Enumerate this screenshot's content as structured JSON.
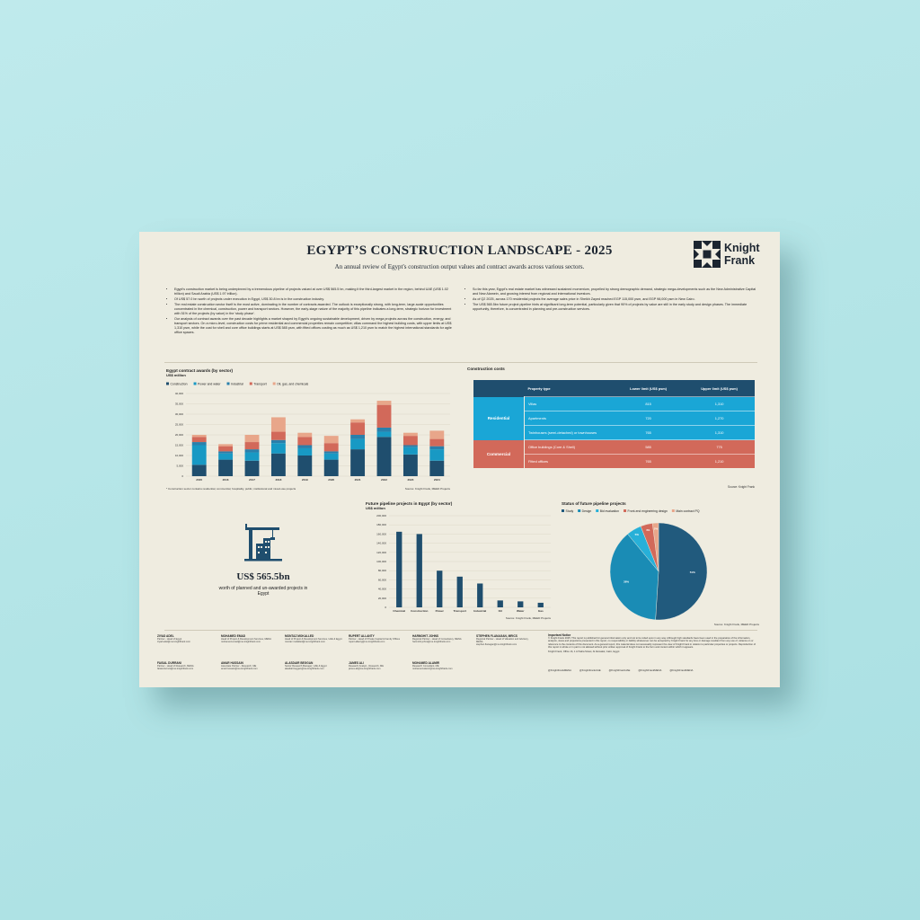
{
  "header": {
    "title": "EGYPT’S CONSTRUCTION LANDSCAPE - 2025",
    "subtitle": "An annual review of Egypt's construction output values and contract awards across various sectors.",
    "logo": [
      "Knight",
      "Frank"
    ]
  },
  "bullets_left": [
    "Egypt's construction market is being underpinned by a tremendous pipeline of projects valued at over US$ 565.5 bn, making it the third-largest market in the region, behind UAE (US$ 1.02 trillion) and Saudi Arabia (US$ 1.97 trillion).",
    "Of US$ 57.0 bn worth of projects under execution in Egypt, US$ 30.8 bn is in the construction industry.",
    "The real estate construction sector itself is the most active, dominating in the number of contracts awarded. The outlook is exceptionally strong, with long-term, large-scale opportunities concentrated in the chemical, construction, power and transport sectors. However, the early-stage nature of the majority of this pipeline indicates a long-term, strategic horizon for investment with 51% of the projects (by value) in the 'study phase'.",
    "Our analysis of contract awards over the past decade highlights a market shaped by Egypt's ongoing sustainable development, driven by mega projects across the construction, energy, and transport sectors. On a micro-level, construction costs for prime residential and commercial properties remain competitive; villas command the highest building costs, with upper limits at US$ 1,310 psm, while the cost for shell and core office buildings starts at US$ 585 psm, with fitted offices costing as much as US$ 1,210 psm to match the highest international standards for agile office spaces."
  ],
  "bullets_right": [
    "So far this year, Egypt's real estate market has witnessed sustained momentum, propelled by strong demographic demand, strategic mega-developments such as the New Administrative Capital and New Alamein, and growing interest from regional and international investors.",
    "As of Q2 2025, across 170 residential projects the average sales price in Sheikh Zayed reached EGP 115,000 psm, and EGP 98,000 psm in New Cairo.",
    "The US$ 565.5bn future project pipeline hints at significant long-term potential, particularly given that 90% of projects by value are still in the early study and design phases. The immediate opportunity, therefore, is concentrated in planning and pre-construction services."
  ],
  "chart_data": [
    {
      "type": "bar",
      "stacked": true,
      "title": "Egypt contract awards (by sector)",
      "subtitle": "US$ million",
      "note": "* Construction sector contains residential, commercial, hospitality, public, institutional and mixed-use projects",
      "source": "Source: Knight Frank, MEED Projects",
      "grid": true,
      "categories": [
        "2015",
        "2016",
        "2017",
        "2018",
        "2019",
        "2020",
        "2021",
        "2022",
        "2023",
        "2024"
      ],
      "series": [
        {
          "name": "Construction",
          "color": "#1f4e6e",
          "values": [
            5500,
            8000,
            7500,
            11000,
            10000,
            8000,
            13000,
            19000,
            10500,
            7500
          ]
        },
        {
          "name": "Power and water",
          "color": "#1899c4",
          "values": [
            9500,
            3000,
            4000,
            5000,
            3500,
            3000,
            5000,
            2500,
            3500,
            5500
          ]
        },
        {
          "name": "Industrial",
          "color": "#2a7fab",
          "values": [
            1500,
            1000,
            1500,
            1500,
            1500,
            1000,
            2000,
            2000,
            1000,
            1500
          ]
        },
        {
          "name": "Transport",
          "color": "#d2695a",
          "values": [
            2500,
            2500,
            3500,
            4000,
            4000,
            4000,
            6000,
            11000,
            4500,
            3500
          ]
        },
        {
          "name": "Oil, gas, and chemicals",
          "color": "#e8a68a",
          "values": [
            1000,
            1000,
            3500,
            7000,
            2000,
            3500,
            1500,
            2000,
            1500,
            4000
          ]
        }
      ],
      "ylim": [
        0,
        40000
      ],
      "yticks": [
        0,
        {
          "value": 5000,
          "label": "5,000"
        },
        {
          "value": 10000,
          "label": "10,000"
        },
        {
          "value": 15000,
          "label": "15,000"
        },
        {
          "value": 20000,
          "label": "20,000"
        },
        {
          "value": 25000,
          "label": "25,000"
        },
        {
          "value": 30000,
          "label": "30,000"
        },
        {
          "value": 35000,
          "label": "35,000"
        },
        {
          "value": 40000,
          "label": "40,000"
        }
      ]
    },
    {
      "type": "bar",
      "title": "Future pipeline projects in Egypt (by sector)",
      "subtitle": "US$ million",
      "source": "Source: Knight Frank, MEED Projects",
      "grid": true,
      "color": "#1f4e6e",
      "categories": [
        "Chemical",
        "Construction",
        "Power",
        "Transport",
        "Industrial",
        "Oil",
        "Water",
        "Gas"
      ],
      "values": [
        165000,
        160000,
        80000,
        67000,
        52000,
        15000,
        13000,
        10000
      ],
      "ylim": [
        0,
        200000
      ],
      "yticks": [
        0,
        {
          "value": 20000,
          "label": "20,000"
        },
        {
          "value": 40000,
          "label": "40,000"
        },
        {
          "value": 60000,
          "label": "60,000"
        },
        {
          "value": 80000,
          "label": "80,000"
        },
        {
          "value": 100000,
          "label": "100,000"
        },
        {
          "value": 120000,
          "label": "120,000"
        },
        {
          "value": 140000,
          "label": "140,000"
        },
        {
          "value": 160000,
          "label": "160,000"
        },
        {
          "value": 180000,
          "label": "180,000"
        },
        {
          "value": 200000,
          "label": "200,000"
        }
      ]
    },
    {
      "type": "pie",
      "title": "Status of future pipeline projects",
      "source": "Source: Knight Frank, MEED Projects",
      "categories": [
        "Study",
        "Design",
        "Bid evaluation",
        "Front-end engineering design",
        "Main contract PQ"
      ],
      "values": [
        51,
        38,
        5,
        4,
        2
      ],
      "value_labels": [
        "51%",
        "38%",
        "5%",
        "4%",
        "2%"
      ],
      "colors": [
        "#215a7d",
        "#1a8cb5",
        "#27b0d8",
        "#d2695a",
        "#e8a68a"
      ]
    }
  ],
  "table": {
    "title": "Construction costs",
    "header": [
      "Property type",
      "Lower limit (US$ psm)",
      "Upper limit (US$ psm)"
    ],
    "groups": [
      {
        "name": "Residential",
        "rows": [
          [
            "Villas",
            "815",
            "1,310"
          ],
          [
            "Apartments",
            "720",
            "1,270"
          ],
          [
            "Twinhouses (semi-detached) or townhouses",
            "765",
            "1,310"
          ]
        ]
      },
      {
        "name": "Commercial",
        "rows": [
          [
            "Office buildings (Core & Shell)",
            "585",
            "775"
          ],
          [
            "Fitted offices",
            "765",
            "1,210"
          ]
        ]
      }
    ],
    "source": "Source: Knight Frank"
  },
  "kpi": {
    "value": "US$ 565.5bn",
    "text": "worth of planned and un-awarded projects in Egypt"
  },
  "contacts": [
    {
      "name": "ZIYAD ADEL",
      "role": "Partner - Head of Egypt",
      "email": "ziyad.adel@me.knightfrank.com"
    },
    {
      "name": "MOHAMED EMAD",
      "role": "Head of Project & Development Services, MENA",
      "email": "mohamed.emad@me.knightfrank.com"
    },
    {
      "name": "MONTAZ MOKALLED",
      "role": "Head of Project & Development Services, UAE & Egypt",
      "email": "montaz.mokalled@me.knightfrank.com"
    },
    {
      "name": "RUPERT ALLANTY",
      "role": "Partner - Head of Private Capital & Family Offices",
      "email": "rupert.allanty@me.knightfrank.com"
    },
    {
      "name": "HARMOHIT JOHNS",
      "role": "Regional Partner - Head of Consultancy, MENA",
      "email": "harmohit.johns@me.knightfrank.com"
    },
    {
      "name": "STEPHEN FLANAGAN, MRICS",
      "role": "Regional Partner - Head of Valuation and Advisory, MENA",
      "email": "stephen.flanagan@me.knightfrank.com"
    },
    {
      "name": "FAISAL DURRANI",
      "role": "Partner - Head of Research, MENA",
      "email": "faisal.durrani@me.knightfrank.com"
    },
    {
      "name": "AMAR HUSSAIN",
      "role": "Associate Partner - Research, ME",
      "email": "amar.hussain@me.knightfrank.com"
    },
    {
      "name": "ALASDAIR BEGGAN",
      "role": "Senior Research Manager, UAE & Egypt",
      "email": "alasdair.beggan@me.knightfrank.com"
    },
    {
      "name": "JAMES ALI",
      "role": "Research Analyst - Research, ME",
      "email": "james.ali@me.knightfrank.com"
    },
    {
      "name": "MOHAMED ALAMIR",
      "role": "Research Consultant, ME",
      "email": "mohamed.alamir@me.knightfrank.com"
    }
  ],
  "notice": {
    "title": "Important Notice",
    "text": "© Knight Frank 2025. This report is published for general information only and not to be relied upon in any way. Although high standards have been used in the preparation of the information, analysis, views and projections presented in this report, no responsibility or liability whatsoever can be accepted by Knight Frank for any loss or damage resultant from any use of, reliance on or reference to the contents of this document. As a general report, this material does not necessarily represent the view of Knight Frank in relation to particular properties or projects. Reproduction of this report in whole or in part is not allowed without prior written approval of Knight Frank to the form and content within which it appears.",
    "address": "Knight Frank, Office 1b, 1 Al Saha Street, Al Zamalek, Cairo, Egypt"
  },
  "social": [
    "@KnightFrankMENA",
    "@KnightFrankUAE",
    "@KnightFrankUAE",
    "@KnightFrankMENA",
    "@KnightFrankMENA"
  ]
}
